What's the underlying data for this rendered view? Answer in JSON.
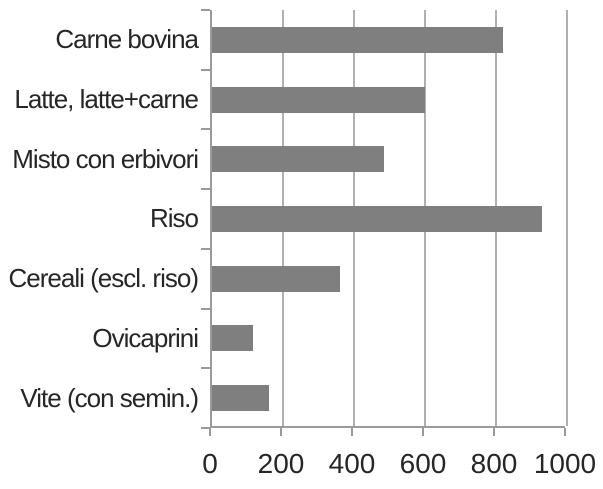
{
  "chart_data": {
    "type": "bar",
    "orientation": "horizontal",
    "title": "",
    "xlabel": "",
    "ylabel": "",
    "categories": [
      "Carne bovina",
      "Latte, latte+carne",
      "Misto con erbivori",
      "Riso",
      "Cereali (escl. riso)",
      "Ovicaprini",
      "Vite (con semin.)"
    ],
    "values": [
      820,
      600,
      485,
      930,
      360,
      115,
      160
    ],
    "x_ticks": [
      0,
      200,
      400,
      600,
      800,
      1000
    ],
    "x_tick_labels": [
      "0",
      "200",
      "400",
      "600",
      "800",
      "1000"
    ],
    "xlim": [
      0,
      1000
    ],
    "grid": "vertical-only",
    "legend": "none",
    "colors": {
      "bar": "#7f7f7f",
      "gridline": "#b0b0b0",
      "axis": "#9a9a9a",
      "text": "#262626",
      "background": "#ffffff"
    }
  }
}
